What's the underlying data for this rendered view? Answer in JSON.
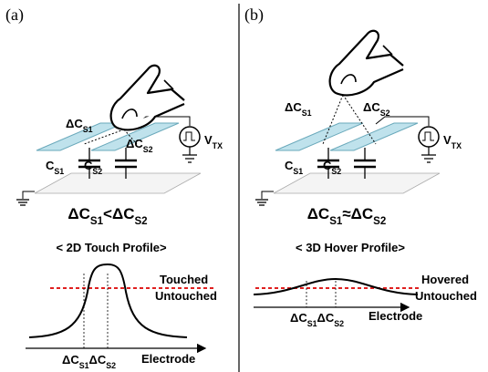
{
  "panels": [
    {
      "label": "(a)",
      "cap_labels": [
        {
          "base": "ΔC",
          "sub": "S1"
        },
        {
          "base": "ΔC",
          "sub": "S2"
        }
      ],
      "source": {
        "base": "V",
        "sub": "TX"
      },
      "capacitors": [
        {
          "base": "C",
          "sub": "S1"
        },
        {
          "base": "C",
          "sub": "S2"
        }
      ],
      "relation": {
        "left": {
          "base": "ΔC",
          "sub": "S1"
        },
        "op": "<",
        "right": {
          "base": "ΔC",
          "sub": "S2"
        }
      },
      "profile_title": "< 2D Touch Profile>",
      "threshold_above": "Touched",
      "threshold_below": "Untouched",
      "axis_marks": [
        {
          "base": "ΔC",
          "sub": "S1"
        },
        {
          "base": "ΔC",
          "sub": "S2"
        }
      ],
      "axis_label": "Electrode"
    },
    {
      "label": "(b)",
      "cap_labels": [
        {
          "base": "ΔC",
          "sub": "S1"
        },
        {
          "base": "ΔC",
          "sub": "S2"
        }
      ],
      "source": {
        "base": "V",
        "sub": "TX"
      },
      "capacitors": [
        {
          "base": "C",
          "sub": "S1"
        },
        {
          "base": "C",
          "sub": "S2"
        }
      ],
      "relation": {
        "left": {
          "base": "ΔC",
          "sub": "S1"
        },
        "op": "≈",
        "right": {
          "base": "ΔC",
          "sub": "S2"
        }
      },
      "profile_title": "< 3D Hover Profile>",
      "threshold_above": "Hovered",
      "threshold_below": "Untouched",
      "axis_marks": [
        {
          "base": "ΔC",
          "sub": "S1"
        },
        {
          "base": "ΔC",
          "sub": "S2"
        }
      ],
      "axis_label": "Electrode"
    }
  ]
}
